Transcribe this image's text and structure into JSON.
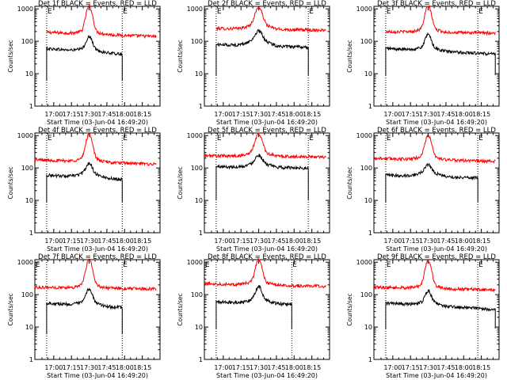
{
  "chart_data": [
    {
      "type": "line",
      "title": "Det 1f BLACK = Events, RED = LLD",
      "xlabel": "Start Time (03-Jun-04 16:49:20)",
      "ylabel": "Counts/sec",
      "yscale": "log",
      "ylim": [
        1,
        1200
      ],
      "xlim_minutes": [
        -16,
        90
      ],
      "x_tick_labels": [
        "17:00",
        "17:15",
        "17:30",
        "17:45",
        "18:00",
        "18:15"
      ],
      "x_tick_minutes": [
        0,
        15,
        30,
        45,
        60,
        75
      ],
      "y_tick_labels": [
        "1",
        "10",
        "100",
        "1000"
      ],
      "y_tick_values": [
        1,
        10,
        100,
        1000
      ],
      "event_markers": [
        "E",
        "E"
      ],
      "marker_minutes": [
        -6,
        58
      ],
      "dotted_lines_minutes": [
        -6,
        58
      ],
      "series": [
        {
          "name": "RED = LLD",
          "color": "#ff0000",
          "start_min": -6,
          "end_min": 87,
          "base_start": 190,
          "base_end": 140,
          "peak_minute": 30,
          "peak_value": 1200,
          "peak_width_min": 2.2,
          "shoulder": 0.25
        },
        {
          "name": "BLACK = Events",
          "color": "#000000",
          "start_min": -6,
          "end_min": 58,
          "base_start": 60,
          "base_end": 40,
          "peak_minute": 30,
          "peak_value": 140,
          "peak_width_min": 2.2,
          "shoulder": 0.25,
          "edge_drop": 6
        }
      ]
    },
    {
      "type": "line",
      "title": "Det 2f BLACK = Events, RED = LLD",
      "xlabel": "Start Time (03-Jun-04 16:49:20)",
      "ylabel": "Counts/sec",
      "yscale": "log",
      "ylim": [
        1,
        1200
      ],
      "xlim_minutes": [
        -16,
        90
      ],
      "x_tick_labels": [
        "17:00",
        "17:15",
        "17:30",
        "17:45",
        "18:00",
        "18:15"
      ],
      "x_tick_minutes": [
        0,
        15,
        30,
        45,
        60,
        75
      ],
      "y_tick_labels": [
        "1",
        "10",
        "100",
        "1000"
      ],
      "y_tick_values": [
        1,
        10,
        100,
        1000
      ],
      "event_markers": [
        "E",
        "E"
      ],
      "marker_minutes": [
        -6,
        72
      ],
      "dotted_lines_minutes": [
        -6,
        72
      ],
      "series": [
        {
          "name": "RED = LLD",
          "color": "#ff0000",
          "start_min": -6,
          "end_min": 87,
          "base_start": 250,
          "base_end": 220,
          "peak_minute": 30,
          "peak_value": 1100,
          "peak_width_min": 2.5,
          "shoulder": 0.5
        },
        {
          "name": "BLACK = Events",
          "color": "#000000",
          "start_min": -6,
          "end_min": 72,
          "base_start": 80,
          "base_end": 65,
          "peak_minute": 30,
          "peak_value": 210,
          "peak_width_min": 2.5,
          "shoulder": 0.6,
          "edge_drop": 9
        }
      ]
    },
    {
      "type": "line",
      "title": "Det 3f BLACK = Events, RED = LLD",
      "xlabel": "Start Time (03-Jun-04 16:49:20)",
      "ylabel": "Counts/sec",
      "yscale": "log",
      "ylim": [
        1,
        1200
      ],
      "xlim_minutes": [
        -16,
        90
      ],
      "x_tick_labels": [
        "17:00",
        "17:15",
        "17:30",
        "17:45",
        "18:00",
        "18:15"
      ],
      "x_tick_minutes": [
        0,
        15,
        30,
        45,
        60,
        75
      ],
      "y_tick_labels": [
        "1",
        "10",
        "100",
        "1000"
      ],
      "y_tick_values": [
        1,
        10,
        100,
        1000
      ],
      "event_markers": [
        "E",
        "E"
      ],
      "marker_minutes": [
        -6,
        72
      ],
      "dotted_lines_minutes": [
        -6,
        72
      ],
      "series": [
        {
          "name": "RED = LLD",
          "color": "#ff0000",
          "start_min": -6,
          "end_min": 87,
          "base_start": 200,
          "base_end": 180,
          "peak_minute": 30,
          "peak_value": 1200,
          "peak_width_min": 2.2,
          "shoulder": 0.3
        },
        {
          "name": "BLACK = Events",
          "color": "#000000",
          "start_min": -6,
          "end_min": 87,
          "base_start": 60,
          "base_end": 40,
          "peak_minute": 30,
          "peak_value": 160,
          "peak_width_min": 2.2,
          "shoulder": 0.3,
          "edge_drop": 9
        }
      ]
    },
    {
      "type": "line",
      "title": "Det 4f BLACK = Events, RED = LLD",
      "xlabel": "Start Time (03-Jun-04 16:49:20)",
      "ylabel": "Counts/sec",
      "yscale": "log",
      "ylim": [
        1,
        1200
      ],
      "xlim_minutes": [
        -16,
        90
      ],
      "x_tick_labels": [
        "17:00",
        "17:15",
        "17:30",
        "17:45",
        "18:00",
        "18:15"
      ],
      "x_tick_minutes": [
        0,
        15,
        30,
        45,
        60,
        75
      ],
      "y_tick_labels": [
        "1",
        "10",
        "100",
        "1000"
      ],
      "y_tick_values": [
        1,
        10,
        100,
        1000
      ],
      "event_markers": [
        "E",
        "E"
      ],
      "marker_minutes": [
        -6,
        58
      ],
      "dotted_lines_minutes": [
        -6,
        58
      ],
      "series": [
        {
          "name": "RED = LLD",
          "color": "#ff0000",
          "start_min": -16,
          "end_min": 87,
          "base_start": 180,
          "base_end": 130,
          "peak_minute": 30,
          "peak_value": 1100,
          "peak_width_min": 2.2,
          "shoulder": 0.3
        },
        {
          "name": "BLACK = Events",
          "color": "#000000",
          "start_min": -6,
          "end_min": 58,
          "base_start": 60,
          "base_end": 45,
          "peak_minute": 30,
          "peak_value": 140,
          "peak_width_min": 2.2,
          "shoulder": 0.4,
          "edge_drop": 9
        }
      ]
    },
    {
      "type": "line",
      "title": "Det 5f BLACK = Events, RED = LLD",
      "xlabel": "Start Time (03-Jun-04 16:49:20)",
      "ylabel": "Counts/sec",
      "yscale": "log",
      "ylim": [
        1,
        1200
      ],
      "xlim_minutes": [
        -16,
        90
      ],
      "x_tick_labels": [
        "17:00",
        "17:15",
        "17:30",
        "17:45",
        "18:00",
        "18:15"
      ],
      "x_tick_minutes": [
        0,
        15,
        30,
        45,
        60,
        75
      ],
      "y_tick_labels": [
        "1",
        "10",
        "100",
        "1000"
      ],
      "y_tick_values": [
        1,
        10,
        100,
        1000
      ],
      "event_markers": [
        "E",
        "E"
      ],
      "marker_minutes": [
        -6,
        72
      ],
      "dotted_lines_minutes": [
        -6,
        72
      ],
      "series": [
        {
          "name": "RED = LLD",
          "color": "#ff0000",
          "start_min": -16,
          "end_min": 87,
          "base_start": 240,
          "base_end": 220,
          "peak_minute": 30,
          "peak_value": 1100,
          "peak_width_min": 2.5,
          "shoulder": 0.4
        },
        {
          "name": "BLACK = Events",
          "color": "#000000",
          "start_min": -6,
          "end_min": 72,
          "base_start": 110,
          "base_end": 100,
          "peak_minute": 30,
          "peak_value": 250,
          "peak_width_min": 2.5,
          "shoulder": 0.4,
          "edge_drop": 10
        }
      ]
    },
    {
      "type": "line",
      "title": "Det 6f BLACK = Events, RED = LLD",
      "xlabel": "Start Time (03-Jun-04 16:49:20)",
      "ylabel": "Counts/sec",
      "yscale": "log",
      "ylim": [
        1,
        1200
      ],
      "xlim_minutes": [
        -16,
        90
      ],
      "x_tick_labels": [
        "17:00",
        "17:15",
        "17:30",
        "17:45",
        "18:00",
        "18:15"
      ],
      "x_tick_minutes": [
        0,
        15,
        30,
        45,
        60,
        75
      ],
      "y_tick_labels": [
        "1",
        "10",
        "100",
        "1000"
      ],
      "y_tick_values": [
        1,
        10,
        100,
        1000
      ],
      "event_markers": [
        "E",
        "E"
      ],
      "marker_minutes": [
        -6,
        72
      ],
      "dotted_lines_minutes": [
        -6,
        72
      ],
      "series": [
        {
          "name": "RED = LLD",
          "color": "#ff0000",
          "start_min": -16,
          "end_min": 87,
          "base_start": 200,
          "base_end": 160,
          "peak_minute": 30,
          "peak_value": 1000,
          "peak_width_min": 2.2,
          "shoulder": 0.3
        },
        {
          "name": "BLACK = Events",
          "color": "#000000",
          "start_min": -6,
          "end_min": 72,
          "base_start": 60,
          "base_end": 50,
          "peak_minute": 30,
          "peak_value": 130,
          "peak_width_min": 2.2,
          "shoulder": 0.4,
          "edge_drop": 9
        }
      ]
    },
    {
      "type": "line",
      "title": "Det 7f BLACK = Events, RED = LLD",
      "xlabel": "Start Time (03-Jun-04 16:49:20)",
      "ylabel": "Counts/sec",
      "yscale": "log",
      "ylim": [
        1,
        1200
      ],
      "xlim_minutes": [
        -16,
        90
      ],
      "x_tick_labels": [
        "17:00",
        "17:15",
        "17:30",
        "17:45",
        "18:00",
        "18:15"
      ],
      "x_tick_minutes": [
        0,
        15,
        30,
        45,
        60,
        75
      ],
      "y_tick_labels": [
        "1",
        "10",
        "100",
        "1000"
      ],
      "y_tick_values": [
        1,
        10,
        100,
        1000
      ],
      "event_markers": [
        "E",
        "E"
      ],
      "marker_minutes": [
        -16,
        58
      ],
      "dotted_lines_minutes": [
        -6,
        58
      ],
      "series": [
        {
          "name": "RED = LLD",
          "color": "#ff0000",
          "start_min": -16,
          "end_min": 87,
          "base_start": 170,
          "base_end": 150,
          "peak_minute": 30,
          "peak_value": 1200,
          "peak_width_min": 2.2,
          "shoulder": 0.3
        },
        {
          "name": "BLACK = Events",
          "color": "#000000",
          "start_min": -6,
          "end_min": 58,
          "base_start": 55,
          "base_end": 40,
          "peak_minute": 30,
          "peak_value": 150,
          "peak_width_min": 2.2,
          "shoulder": 0.3,
          "edge_drop": 6
        }
      ]
    },
    {
      "type": "line",
      "title": "Det 8f BLACK = Events, RED = LLD",
      "xlabel": "Start Time (03-Jun-04 16:49:20)",
      "ylabel": "Counts/sec",
      "yscale": "log",
      "ylim": [
        1,
        1200
      ],
      "xlim_minutes": [
        -16,
        90
      ],
      "x_tick_labels": [
        "17:00",
        "17:15",
        "17:30",
        "17:45",
        "18:00",
        "18:15"
      ],
      "x_tick_minutes": [
        0,
        15,
        30,
        45,
        60,
        75
      ],
      "y_tick_labels": [
        "1",
        "10",
        "100",
        "1000"
      ],
      "y_tick_values": [
        1,
        10,
        100,
        1000
      ],
      "event_markers": [
        "E",
        "E"
      ],
      "marker_minutes": [
        -16,
        58
      ],
      "dotted_lines_minutes": [
        -6,
        58
      ],
      "series": [
        {
          "name": "RED = LLD",
          "color": "#ff0000",
          "start_min": -16,
          "end_min": 87,
          "base_start": 220,
          "base_end": 180,
          "peak_minute": 30,
          "peak_value": 1200,
          "peak_width_min": 2.2,
          "shoulder": 0.3
        },
        {
          "name": "BLACK = Events",
          "color": "#000000",
          "start_min": -6,
          "end_min": 58,
          "base_start": 60,
          "base_end": 50,
          "peak_minute": 30,
          "peak_value": 180,
          "peak_width_min": 2.2,
          "shoulder": 0.4,
          "edge_drop": 9
        }
      ]
    },
    {
      "type": "line",
      "title": "Det 9f BLACK = Events, RED = LLD",
      "xlabel": "Start Time (03-Jun-04 16:49:20)",
      "ylabel": "Counts/sec",
      "yscale": "log",
      "ylim": [
        1,
        1200
      ],
      "xlim_minutes": [
        -16,
        90
      ],
      "x_tick_labels": [
        "17:00",
        "17:15",
        "17:30",
        "17:45",
        "18:00",
        "18:15"
      ],
      "x_tick_minutes": [
        0,
        15,
        30,
        45,
        60,
        75
      ],
      "y_tick_labels": [
        "1",
        "10",
        "100",
        "1000"
      ],
      "y_tick_values": [
        1,
        10,
        100,
        1000
      ],
      "event_markers": [
        "E",
        "E"
      ],
      "marker_minutes": [
        -6,
        72
      ],
      "dotted_lines_minutes": [
        -6,
        72
      ],
      "series": [
        {
          "name": "RED = LLD",
          "color": "#ff0000",
          "start_min": -16,
          "end_min": 87,
          "base_start": 170,
          "base_end": 140,
          "peak_minute": 30,
          "peak_value": 1100,
          "peak_width_min": 2.2,
          "shoulder": 0.3
        },
        {
          "name": "BLACK = Events",
          "color": "#000000",
          "start_min": -6,
          "end_min": 87,
          "base_start": 55,
          "base_end": 35,
          "peak_minute": 30,
          "peak_value": 130,
          "peak_width_min": 2.2,
          "shoulder": 0.3,
          "edge_drop": 9
        }
      ]
    }
  ]
}
